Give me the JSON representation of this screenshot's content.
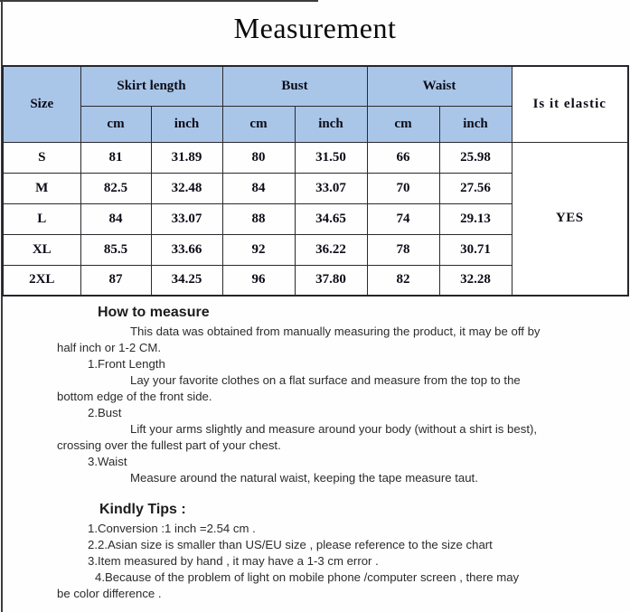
{
  "title": "Measurement",
  "table": {
    "size_header": "Size",
    "groups": [
      {
        "label": "Skirt length",
        "sub": [
          "cm",
          "inch"
        ]
      },
      {
        "label": "Bust",
        "sub": [
          "cm",
          "inch"
        ]
      },
      {
        "label": "Waist",
        "sub": [
          "cm",
          "inch"
        ]
      }
    ],
    "elastic_header": "Is it elastic",
    "elastic_value": "YES",
    "header_bg": "#a9c6e8",
    "rows": [
      {
        "size": "S",
        "values": [
          "81",
          "31.89",
          "80",
          "31.50",
          "66",
          "25.98"
        ]
      },
      {
        "size": "M",
        "values": [
          "82.5",
          "32.48",
          "84",
          "33.07",
          "70",
          "27.56"
        ]
      },
      {
        "size": "L",
        "values": [
          "84",
          "33.07",
          "88",
          "34.65",
          "74",
          "29.13"
        ]
      },
      {
        "size": "XL",
        "values": [
          "85.5",
          "33.66",
          "92",
          "36.22",
          "78",
          "30.71"
        ]
      },
      {
        "size": "2XL",
        "values": [
          "87",
          "34.25",
          "96",
          "37.80",
          "82",
          "32.28"
        ]
      }
    ]
  },
  "how_to_measure": {
    "heading": "How to measure",
    "lines": [
      {
        "indent": "desc",
        "text": "This data was obtained from manually measuring the product, it may be off by"
      },
      {
        "indent": "cont",
        "text": "half inch or 1-2 CM."
      },
      {
        "indent": "num",
        "text": "1.Front Length"
      },
      {
        "indent": "desc",
        "text": "Lay your favorite clothes on a flat surface and measure from the top to the"
      },
      {
        "indent": "cont",
        "text": "bottom edge of the front side."
      },
      {
        "indent": "num",
        "text": "2.Bust"
      },
      {
        "indent": "desc",
        "text": "Lift your arms slightly and measure around your body (without a shirt is best),"
      },
      {
        "indent": "cont",
        "text": "crossing over the fullest part of your chest."
      },
      {
        "indent": "num",
        "text": "3.Waist"
      },
      {
        "indent": "desc",
        "text": "Measure around the natural waist, keeping the tape measure taut."
      }
    ]
  },
  "kindly_tips": {
    "heading": "Kindly Tips :",
    "lines": [
      {
        "indent": "num",
        "text": "1.Conversion :1 inch =2.54 cm ."
      },
      {
        "indent": "num",
        "text": "2.2.Asian size is smaller than US/EU size , please reference to the size chart"
      },
      {
        "indent": "num",
        "text": "3.Item measured by hand , it may have a 1-3 cm error ."
      },
      {
        "indent": "num2",
        "text": "4.Because of the problem of light on mobile phone /computer screen , there may"
      },
      {
        "indent": "cont",
        "text": "be  color difference ."
      }
    ]
  }
}
